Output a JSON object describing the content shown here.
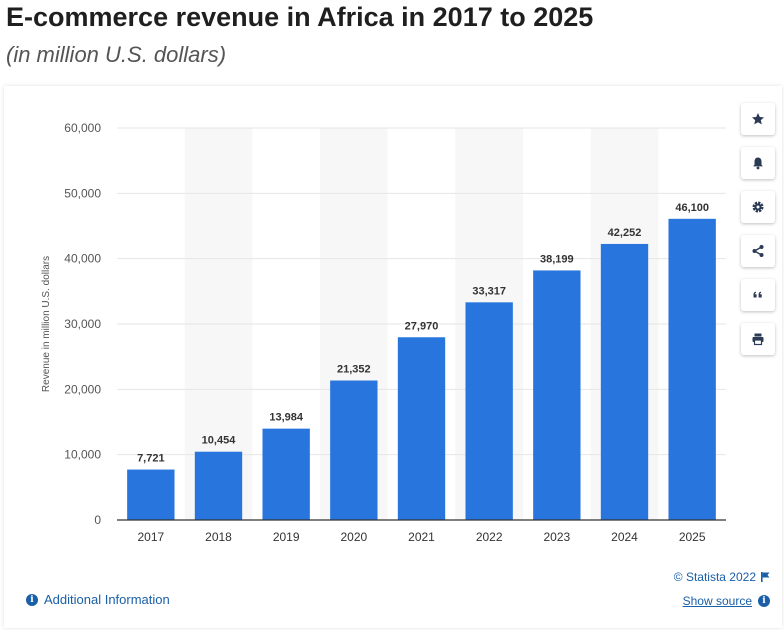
{
  "title": "E-commerce revenue in Africa in 2017 to 2025",
  "subtitle": "(in million U.S. dollars)",
  "colors": {
    "bar": "#2876dd",
    "link": "#1a5fa8",
    "alt_band": "#f7f7f7",
    "grid": "#e6e6e6"
  },
  "toolbar": [
    {
      "name": "favorite-button",
      "icon": "star-icon"
    },
    {
      "name": "notification-button",
      "icon": "bell-icon"
    },
    {
      "name": "settings-button",
      "icon": "gear-icon"
    },
    {
      "name": "share-button",
      "icon": "share-icon"
    },
    {
      "name": "cite-button",
      "icon": "quote-icon"
    },
    {
      "name": "print-button",
      "icon": "printer-icon"
    }
  ],
  "footer": {
    "additional_info": "Additional Information",
    "credit": "© Statista 2022",
    "show_source": "Show source"
  },
  "chart_data": {
    "type": "bar",
    "categories": [
      "2017",
      "2018",
      "2019",
      "2020",
      "2021",
      "2022",
      "2023",
      "2024",
      "2025"
    ],
    "values": [
      7721,
      10454,
      13984,
      21352,
      27970,
      33317,
      38199,
      42252,
      46100
    ],
    "value_labels": [
      "7,721",
      "10,454",
      "13,984",
      "21,352",
      "27,970",
      "33,317",
      "38,199",
      "42,252",
      "46,100"
    ],
    "ylabel": "Revenue in million U.S. dollars",
    "xlabel": "",
    "ylim": [
      0,
      60000
    ],
    "yticks": [
      0,
      10000,
      20000,
      30000,
      40000,
      50000,
      60000
    ],
    "ytick_labels": [
      "0",
      "10,000",
      "20,000",
      "30,000",
      "40,000",
      "50,000",
      "60,000"
    ],
    "grid": true,
    "legend": "none"
  }
}
